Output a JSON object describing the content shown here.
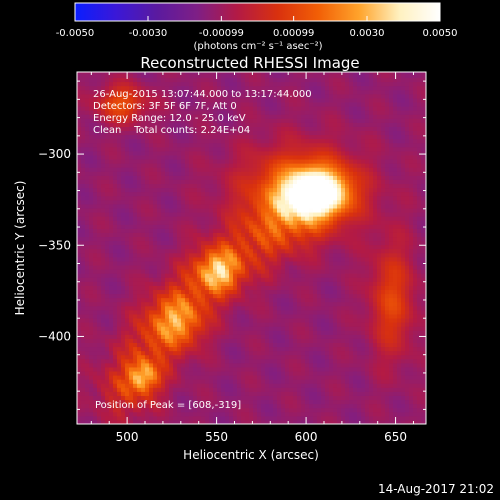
{
  "chart_data": {
    "type": "heatmap",
    "title": "Reconstructed RHESSI Image",
    "xlabel": "Heliocentric X (arcsec)",
    "ylabel": "Heliocentric Y (arcsec)",
    "xlim": [
      472,
      667
    ],
    "ylim": [
      -448,
      -255
    ],
    "x_ticks": [
      500,
      550,
      600,
      650
    ],
    "y_ticks": [
      -300,
      -350,
      -400
    ],
    "colorbar": {
      "range": [
        -0.005,
        0.005
      ],
      "ticks": [
        "-0.0050",
        "-0.0030",
        "-0.00099",
        "0.00099",
        "0.0030",
        "0.0050"
      ],
      "unit_label": "(photons cm⁻² s⁻¹ asec⁻²)",
      "colors": [
        "#0a1eff",
        "#3a18d8",
        "#5a1aa0",
        "#7e1f86",
        "#b31a45",
        "#d9310e",
        "#f25f06",
        "#ffa32b",
        "#fff1c0",
        "#ffffff"
      ]
    },
    "info_lines": [
      "26-Aug-2015 13:07:44.000 to 13:17:44.000",
      "Detectors: 3F 5F 6F 7F, Att 0",
      "Energy Range: 12.0 - 25.0 keV",
      "Clean    Total counts: 2.24E+04"
    ],
    "peak_label": "Position of Peak = [608,-319]",
    "peak": [
      608,
      -319
    ],
    "sources": [
      {
        "x": 606,
        "y": -321,
        "value": 0.005,
        "sx": 12,
        "sy": 9
      },
      {
        "x": 596,
        "y": -320,
        "value": 0.0016,
        "sx": 24,
        "sy": 17
      },
      {
        "x": 551,
        "y": -364,
        "value": 0.0022,
        "sx": 8,
        "sy": 8
      },
      {
        "x": 528,
        "y": -392,
        "value": 0.0014,
        "sx": 10,
        "sy": 10
      },
      {
        "x": 509,
        "y": -422,
        "value": 0.002,
        "sx": 6,
        "sy": 6
      },
      {
        "x": 497,
        "y": -272,
        "value": 0.0012,
        "sx": 10,
        "sy": 7
      },
      {
        "x": 648,
        "y": -380,
        "value": 0.0009,
        "sx": 9,
        "sy": 22
      }
    ],
    "ridge": {
      "points": [
        [
          500,
          -428
        ],
        [
          520,
          -395
        ],
        [
          545,
          -368
        ],
        [
          570,
          -350
        ],
        [
          590,
          -335
        ]
      ],
      "value": 0.001,
      "width": 12
    },
    "background_value": -0.0012
  },
  "footer": {
    "timestamp": "14-Aug-2017 21:02"
  }
}
